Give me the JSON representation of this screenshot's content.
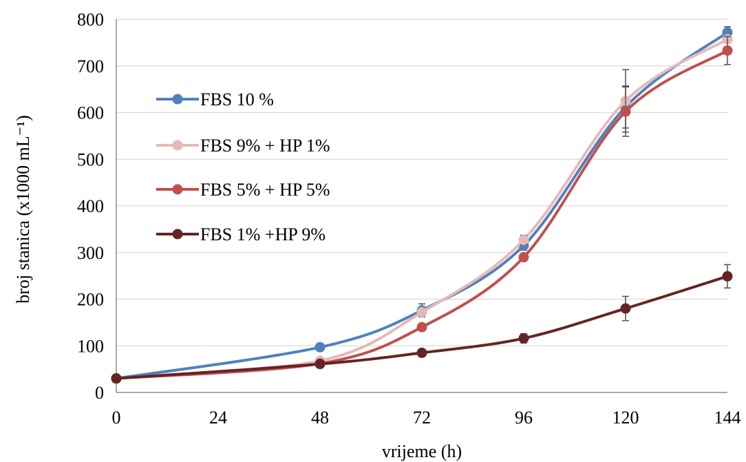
{
  "chart_data": {
    "type": "line",
    "xlabel": "vrijeme (h)",
    "ylabel": "broj stanica (x1000 mL⁻¹)",
    "x": [
      0,
      24,
      48,
      72,
      96,
      120,
      144
    ],
    "xticks": [
      0,
      24,
      48,
      72,
      96,
      120,
      144
    ],
    "xlim": [
      0,
      144
    ],
    "yticks": [
      0,
      100,
      200,
      300,
      400,
      500,
      600,
      700,
      800
    ],
    "ylim": [
      0,
      800
    ],
    "grid": true,
    "legend_position": "upper-left",
    "series": [
      {
        "name": "FBS 10 %",
        "color": "#4f81bd",
        "x": [
          0,
          48,
          72,
          96,
          120,
          144
        ],
        "y": [
          30,
          97,
          176,
          315,
          612,
          772
        ],
        "error": [
          0,
          0,
          14,
          10,
          45,
          12
        ]
      },
      {
        "name": "FBS 9% + HP 1%",
        "color": "#e6b9b8",
        "x": [
          0,
          48,
          72,
          96,
          120,
          144
        ],
        "y": [
          30,
          68,
          172,
          327,
          625,
          757
        ],
        "error": [
          0,
          0,
          0,
          10,
          67,
          0
        ]
      },
      {
        "name": "FBS 5% + HP 5%",
        "color": "#c0504d",
        "x": [
          0,
          48,
          72,
          96,
          120,
          144
        ],
        "y": [
          30,
          62,
          140,
          290,
          602,
          733
        ],
        "error": [
          0,
          0,
          0,
          0,
          53,
          30
        ]
      },
      {
        "name": "FBS 1% +HP 9%",
        "color": "#632523",
        "x": [
          0,
          48,
          72,
          96,
          120,
          144
        ],
        "y": [
          30,
          61,
          85,
          116,
          180,
          249
        ],
        "error": [
          0,
          0,
          0,
          10,
          26,
          25
        ]
      }
    ]
  }
}
